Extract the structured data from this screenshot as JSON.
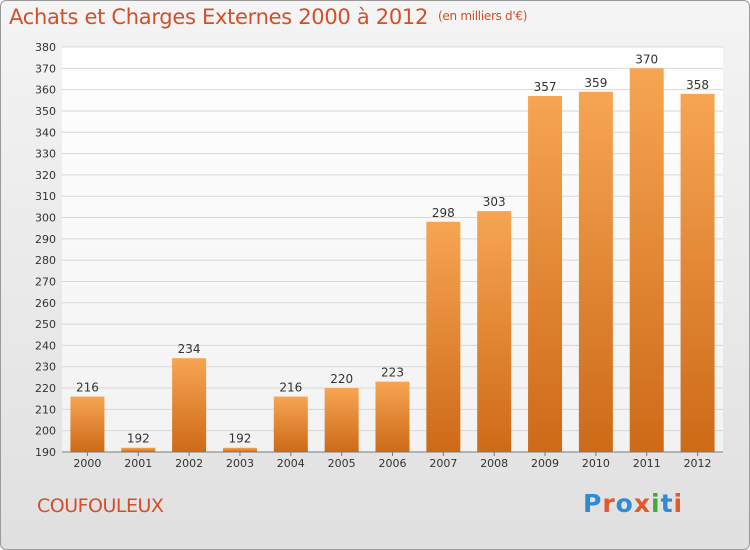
{
  "header": {
    "title": "Achats et Charges Externes 2000 à 2012",
    "unit": "(en milliers d'€)"
  },
  "footer": {
    "commune": "COUFOULEUX",
    "logo_text": "Proxiti"
  },
  "colors": {
    "title": "#d1502a",
    "bar_top": "#f7a552",
    "bar_bottom": "#cd6a18",
    "grid": "#d8d8d8",
    "logo": [
      "#2f8bd6",
      "#e2592a",
      "#2f8bd6",
      "#e2592a",
      "#46a836",
      "#2f8bd6",
      "#e2592a"
    ]
  },
  "chart_data": {
    "type": "bar",
    "title": "Achats et Charges Externes 2000 à 2012",
    "subtitle": "(en milliers d'€)",
    "xlabel": "",
    "ylabel": "",
    "categories": [
      "2000",
      "2001",
      "2002",
      "2003",
      "2004",
      "2005",
      "2006",
      "2007",
      "2008",
      "2009",
      "2010",
      "2011",
      "2012"
    ],
    "values": [
      216,
      192,
      234,
      192,
      216,
      220,
      223,
      298,
      303,
      357,
      359,
      370,
      358
    ],
    "ylim": [
      190,
      380
    ],
    "ytick_step": 10,
    "grid": true,
    "legend": "none"
  }
}
